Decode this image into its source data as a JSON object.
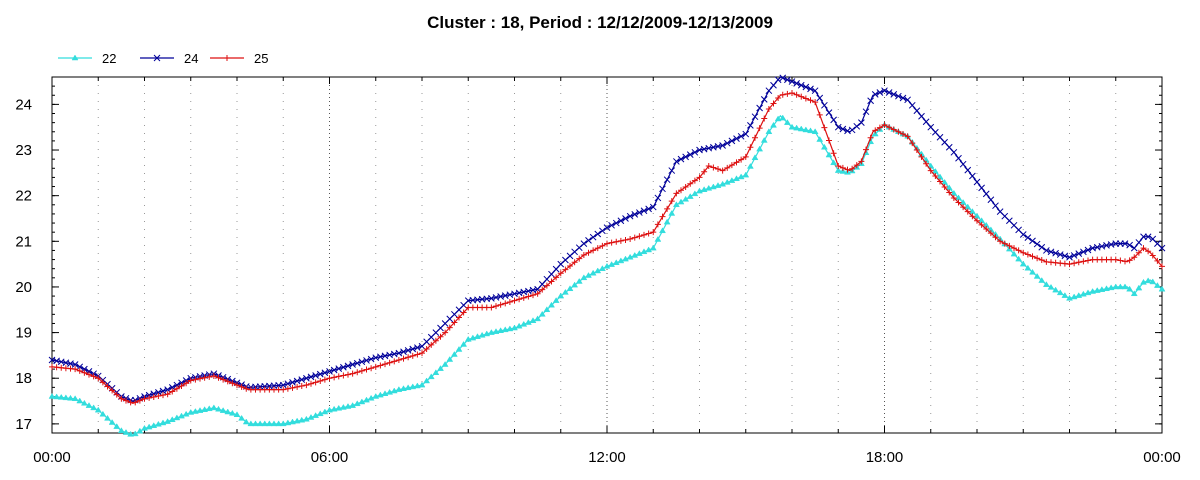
{
  "chart_data": {
    "type": "line",
    "title": "Cluster : 18, Period : 12/12/2009-12/13/2009",
    "xlabel": "",
    "ylabel": "",
    "x_ticks": [
      "00:00",
      "06:00",
      "12:00",
      "18:00",
      "00:00"
    ],
    "y_ticks": [
      "17",
      "18",
      "19",
      "20",
      "21",
      "22",
      "23",
      "24"
    ],
    "xlim_hours": [
      0,
      24
    ],
    "ylim": [
      16.8,
      24.6
    ],
    "grid": "dotted vertical",
    "legend_position": "top-left",
    "series": [
      {
        "name": "22",
        "color": "#33dddd",
        "marker": "triangle",
        "points": [
          [
            0,
            17.6
          ],
          [
            0.5,
            17.55
          ],
          [
            1.0,
            17.3
          ],
          [
            1.5,
            16.85
          ],
          [
            1.75,
            16.75
          ],
          [
            2.0,
            16.9
          ],
          [
            2.5,
            17.05
          ],
          [
            3.0,
            17.25
          ],
          [
            3.5,
            17.35
          ],
          [
            4.0,
            17.2
          ],
          [
            4.25,
            17.0
          ],
          [
            5.0,
            17.0
          ],
          [
            5.5,
            17.1
          ],
          [
            6.0,
            17.3
          ],
          [
            6.5,
            17.4
          ],
          [
            7.0,
            17.6
          ],
          [
            7.5,
            17.75
          ],
          [
            8.0,
            17.85
          ],
          [
            8.5,
            18.3
          ],
          [
            9.0,
            18.85
          ],
          [
            9.5,
            19.0
          ],
          [
            10.0,
            19.1
          ],
          [
            10.5,
            19.3
          ],
          [
            11.0,
            19.8
          ],
          [
            11.5,
            20.2
          ],
          [
            12.0,
            20.45
          ],
          [
            12.5,
            20.65
          ],
          [
            13.0,
            20.85
          ],
          [
            13.5,
            21.8
          ],
          [
            14.0,
            22.1
          ],
          [
            14.5,
            22.25
          ],
          [
            15.0,
            22.45
          ],
          [
            15.5,
            23.4
          ],
          [
            15.75,
            23.75
          ],
          [
            16.0,
            23.5
          ],
          [
            16.5,
            23.4
          ],
          [
            17.0,
            22.55
          ],
          [
            17.25,
            22.5
          ],
          [
            17.5,
            22.7
          ],
          [
            17.75,
            23.3
          ],
          [
            18.0,
            23.55
          ],
          [
            18.5,
            23.3
          ],
          [
            19.0,
            22.65
          ],
          [
            19.5,
            22.05
          ],
          [
            20.0,
            21.55
          ],
          [
            20.5,
            21.05
          ],
          [
            21.0,
            20.5
          ],
          [
            21.5,
            20.05
          ],
          [
            22.0,
            19.75
          ],
          [
            22.5,
            19.9
          ],
          [
            23.0,
            20.0
          ],
          [
            23.25,
            20.0
          ],
          [
            23.4,
            19.85
          ],
          [
            23.6,
            20.1
          ],
          [
            23.75,
            20.15
          ],
          [
            24.0,
            19.95
          ]
        ]
      },
      {
        "name": "24",
        "color": "#000099",
        "marker": "x",
        "points": [
          [
            0,
            18.4
          ],
          [
            0.5,
            18.3
          ],
          [
            1.0,
            18.05
          ],
          [
            1.5,
            17.6
          ],
          [
            1.75,
            17.5
          ],
          [
            2.0,
            17.6
          ],
          [
            2.5,
            17.75
          ],
          [
            3.0,
            18.0
          ],
          [
            3.5,
            18.1
          ],
          [
            4.0,
            17.9
          ],
          [
            4.25,
            17.8
          ],
          [
            5.0,
            17.85
          ],
          [
            5.5,
            18.0
          ],
          [
            6.0,
            18.15
          ],
          [
            6.5,
            18.3
          ],
          [
            7.0,
            18.45
          ],
          [
            7.5,
            18.55
          ],
          [
            8.0,
            18.7
          ],
          [
            8.5,
            19.2
          ],
          [
            9.0,
            19.7
          ],
          [
            9.5,
            19.75
          ],
          [
            10.0,
            19.85
          ],
          [
            10.5,
            19.95
          ],
          [
            11.0,
            20.5
          ],
          [
            11.5,
            20.95
          ],
          [
            12.0,
            21.3
          ],
          [
            12.5,
            21.55
          ],
          [
            13.0,
            21.75
          ],
          [
            13.5,
            22.75
          ],
          [
            14.0,
            23.0
          ],
          [
            14.5,
            23.1
          ],
          [
            15.0,
            23.35
          ],
          [
            15.5,
            24.3
          ],
          [
            15.75,
            24.6
          ],
          [
            16.0,
            24.5
          ],
          [
            16.5,
            24.3
          ],
          [
            17.0,
            23.5
          ],
          [
            17.25,
            23.4
          ],
          [
            17.5,
            23.6
          ],
          [
            17.75,
            24.2
          ],
          [
            18.0,
            24.3
          ],
          [
            18.5,
            24.1
          ],
          [
            19.0,
            23.5
          ],
          [
            19.5,
            22.95
          ],
          [
            20.0,
            22.3
          ],
          [
            20.5,
            21.65
          ],
          [
            21.0,
            21.15
          ],
          [
            21.5,
            20.8
          ],
          [
            22.0,
            20.65
          ],
          [
            22.5,
            20.85
          ],
          [
            23.0,
            20.95
          ],
          [
            23.25,
            20.95
          ],
          [
            23.4,
            20.85
          ],
          [
            23.6,
            21.1
          ],
          [
            23.75,
            21.1
          ],
          [
            24.0,
            20.85
          ]
        ]
      },
      {
        "name": "25",
        "color": "#dd1111",
        "marker": "plus",
        "points": [
          [
            0,
            18.25
          ],
          [
            0.5,
            18.2
          ],
          [
            1.0,
            18.0
          ],
          [
            1.5,
            17.55
          ],
          [
            1.75,
            17.45
          ],
          [
            2.0,
            17.55
          ],
          [
            2.5,
            17.65
          ],
          [
            3.0,
            17.95
          ],
          [
            3.5,
            18.05
          ],
          [
            4.0,
            17.85
          ],
          [
            4.25,
            17.75
          ],
          [
            5.0,
            17.75
          ],
          [
            5.5,
            17.85
          ],
          [
            6.0,
            18.0
          ],
          [
            6.5,
            18.1
          ],
          [
            7.0,
            18.25
          ],
          [
            7.5,
            18.4
          ],
          [
            8.0,
            18.55
          ],
          [
            8.5,
            19.0
          ],
          [
            9.0,
            19.55
          ],
          [
            9.5,
            19.55
          ],
          [
            10.0,
            19.7
          ],
          [
            10.5,
            19.85
          ],
          [
            11.0,
            20.3
          ],
          [
            11.5,
            20.7
          ],
          [
            12.0,
            20.95
          ],
          [
            12.5,
            21.05
          ],
          [
            13.0,
            21.2
          ],
          [
            13.5,
            22.05
          ],
          [
            14.0,
            22.4
          ],
          [
            14.2,
            22.65
          ],
          [
            14.5,
            22.55
          ],
          [
            15.0,
            22.85
          ],
          [
            15.5,
            23.9
          ],
          [
            15.75,
            24.2
          ],
          [
            16.0,
            24.25
          ],
          [
            16.5,
            24.05
          ],
          [
            17.0,
            22.65
          ],
          [
            17.25,
            22.55
          ],
          [
            17.5,
            22.75
          ],
          [
            17.75,
            23.4
          ],
          [
            18.0,
            23.55
          ],
          [
            18.5,
            23.3
          ],
          [
            19.0,
            22.55
          ],
          [
            19.5,
            21.95
          ],
          [
            20.0,
            21.45
          ],
          [
            20.5,
            21.0
          ],
          [
            21.0,
            20.75
          ],
          [
            21.5,
            20.55
          ],
          [
            22.0,
            20.5
          ],
          [
            22.5,
            20.6
          ],
          [
            23.0,
            20.6
          ],
          [
            23.25,
            20.55
          ],
          [
            23.4,
            20.65
          ],
          [
            23.6,
            20.85
          ],
          [
            23.75,
            20.75
          ],
          [
            24.0,
            20.45
          ]
        ]
      }
    ]
  }
}
